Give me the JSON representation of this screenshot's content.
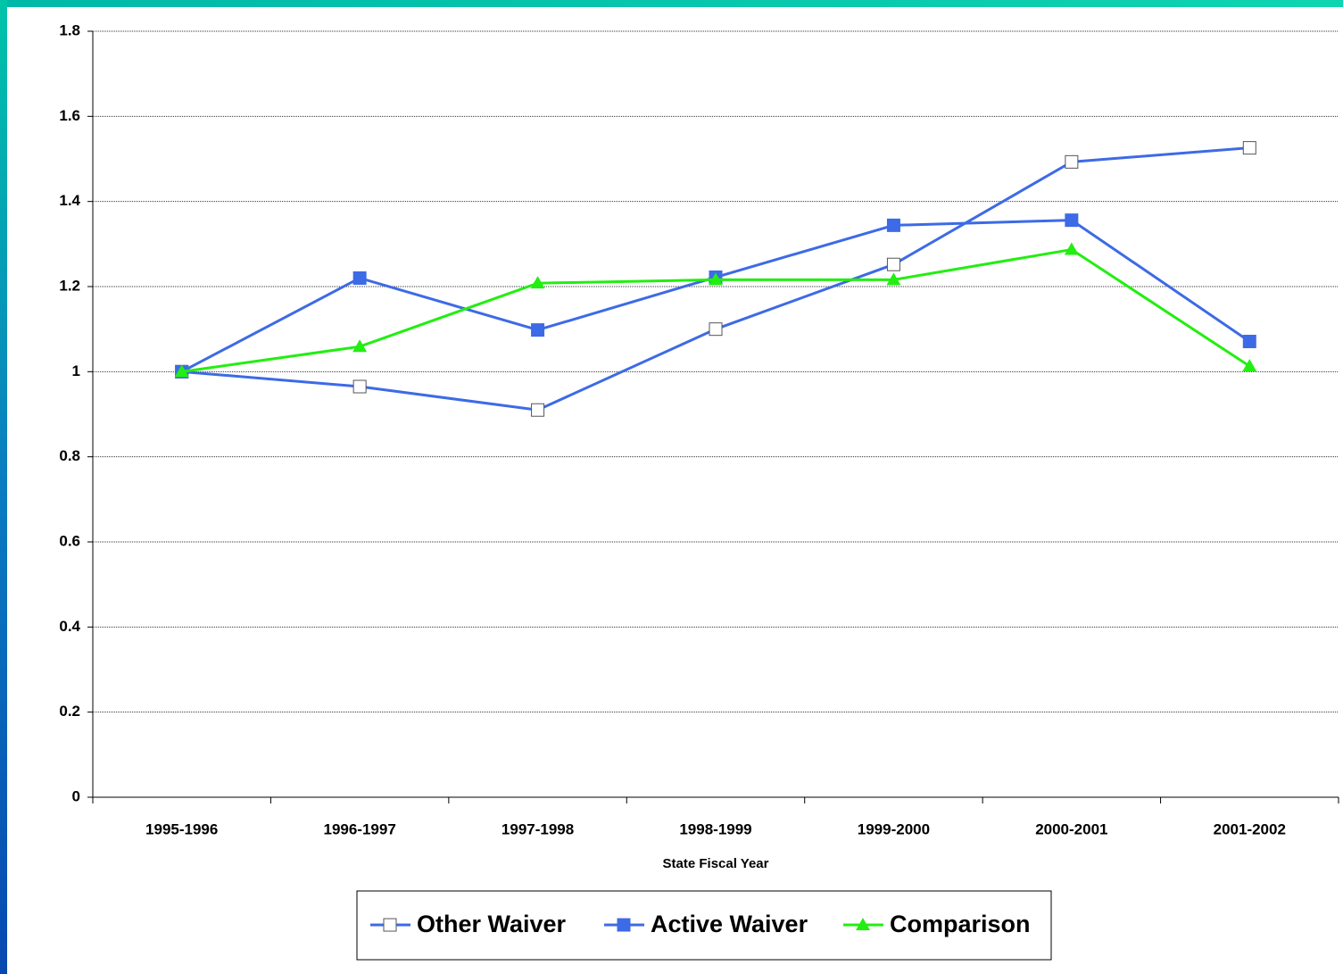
{
  "chart_data": {
    "type": "line",
    "x_label": "State Fiscal Year",
    "categories": [
      "1995-1996",
      "1996-1997",
      "1997-1998",
      "1998-1999",
      "1999-2000",
      "2000-2001",
      "2001-2002"
    ],
    "series": [
      {
        "name": "Other Waiver",
        "color": "#3d6ae6",
        "marker": "square-open",
        "values": [
          1.0,
          0.965,
          0.91,
          1.1,
          1.252,
          1.493,
          1.526
        ]
      },
      {
        "name": "Active Waiver",
        "color": "#3d6ae6",
        "marker": "square",
        "values": [
          1.0,
          1.22,
          1.098,
          1.222,
          1.344,
          1.356,
          1.071
        ]
      },
      {
        "name": "Comparison",
        "color": "#22ee11",
        "marker": "triangle",
        "values": [
          1.0,
          1.059,
          1.208,
          1.216,
          1.216,
          1.287,
          1.013
        ]
      }
    ],
    "ylim": [
      0,
      1.8
    ],
    "yticks": [
      0,
      0.2,
      0.4,
      0.6,
      0.8,
      1,
      1.2,
      1.4,
      1.6,
      1.8
    ],
    "grid": true,
    "legend": "bottom"
  }
}
